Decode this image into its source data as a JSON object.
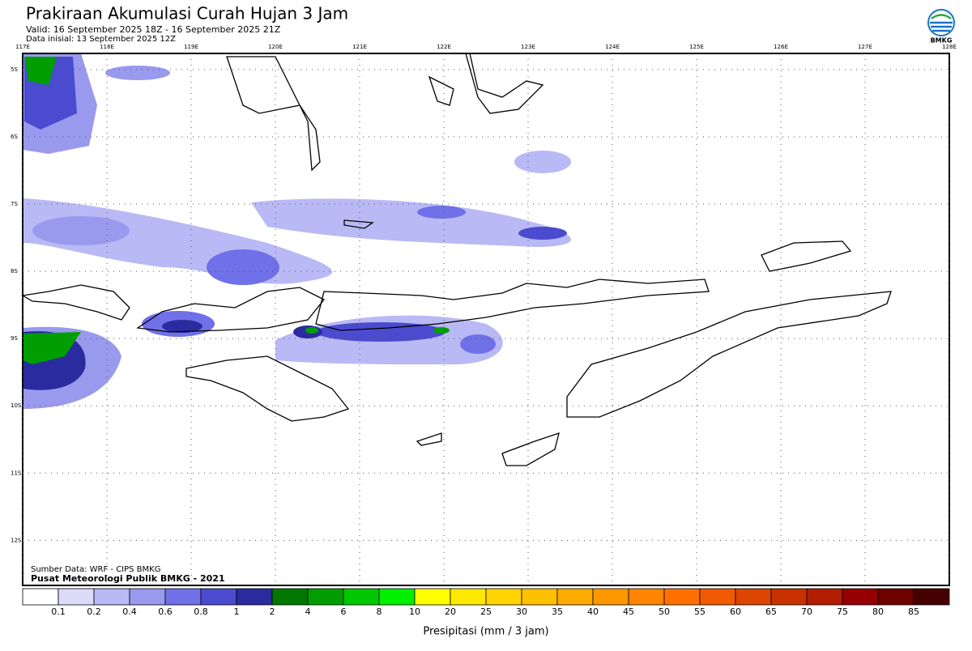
{
  "header": {
    "title": "Prakiraan Akumulasi Curah Hujan 3 Jam",
    "valid": "Valid: 16 September 2025 18Z - 16 September 2025 21Z",
    "initial": "Data inisial: 13 September 2025 12Z",
    "logo_text": "BMKG"
  },
  "map": {
    "lon_range": [
      117,
      128
    ],
    "lat_range": [
      -4.76,
      -12.67
    ],
    "lon_ticks": [
      {
        "value": 117,
        "label": "117E"
      },
      {
        "value": 118,
        "label": "118E"
      },
      {
        "value": 119,
        "label": "119E"
      },
      {
        "value": 120,
        "label": "120E"
      },
      {
        "value": 121,
        "label": "121E"
      },
      {
        "value": 122,
        "label": "122E"
      },
      {
        "value": 123,
        "label": "123E"
      },
      {
        "value": 124,
        "label": "124E"
      },
      {
        "value": 125,
        "label": "125E"
      },
      {
        "value": 126,
        "label": "126E"
      },
      {
        "value": 127,
        "label": "127E"
      },
      {
        "value": 128,
        "label": "128E"
      }
    ],
    "lat_ticks": [
      {
        "value": -5,
        "label": "5S"
      },
      {
        "value": -6,
        "label": "6S"
      },
      {
        "value": -7,
        "label": "7S"
      },
      {
        "value": -8,
        "label": "8S"
      },
      {
        "value": -9,
        "label": "9S"
      },
      {
        "value": -10,
        "label": "10S"
      },
      {
        "value": -11,
        "label": "11S"
      },
      {
        "value": -12,
        "label": "12S"
      }
    ],
    "source": "Sumber Data: WRF - CIPS BMKG",
    "publisher": "Pusat Meteorologi Publik BMKG - 2021"
  },
  "legend": {
    "title": "Presipitasi (mm / 3 jam)",
    "levels": [
      0.1,
      0.2,
      0.4,
      0.6,
      0.8,
      1,
      2,
      4,
      6,
      8,
      10,
      20,
      25,
      30,
      35,
      40,
      45,
      50,
      55,
      60,
      65,
      70,
      75,
      80,
      85
    ],
    "colors": [
      "#ffffff",
      "#dcdcfa",
      "#b9b9f5",
      "#9999ee",
      "#7070e8",
      "#4b4bd0",
      "#2b2ba0",
      "#007800",
      "#009e00",
      "#00c800",
      "#00f000",
      "#ffff00",
      "#ffe800",
      "#ffd400",
      "#ffc000",
      "#ffaa00",
      "#ff9800",
      "#ff8400",
      "#ff7000",
      "#f05a00",
      "#dc4600",
      "#c83200",
      "#b41e00",
      "#960000",
      "#6e0000",
      "#460000"
    ]
  }
}
